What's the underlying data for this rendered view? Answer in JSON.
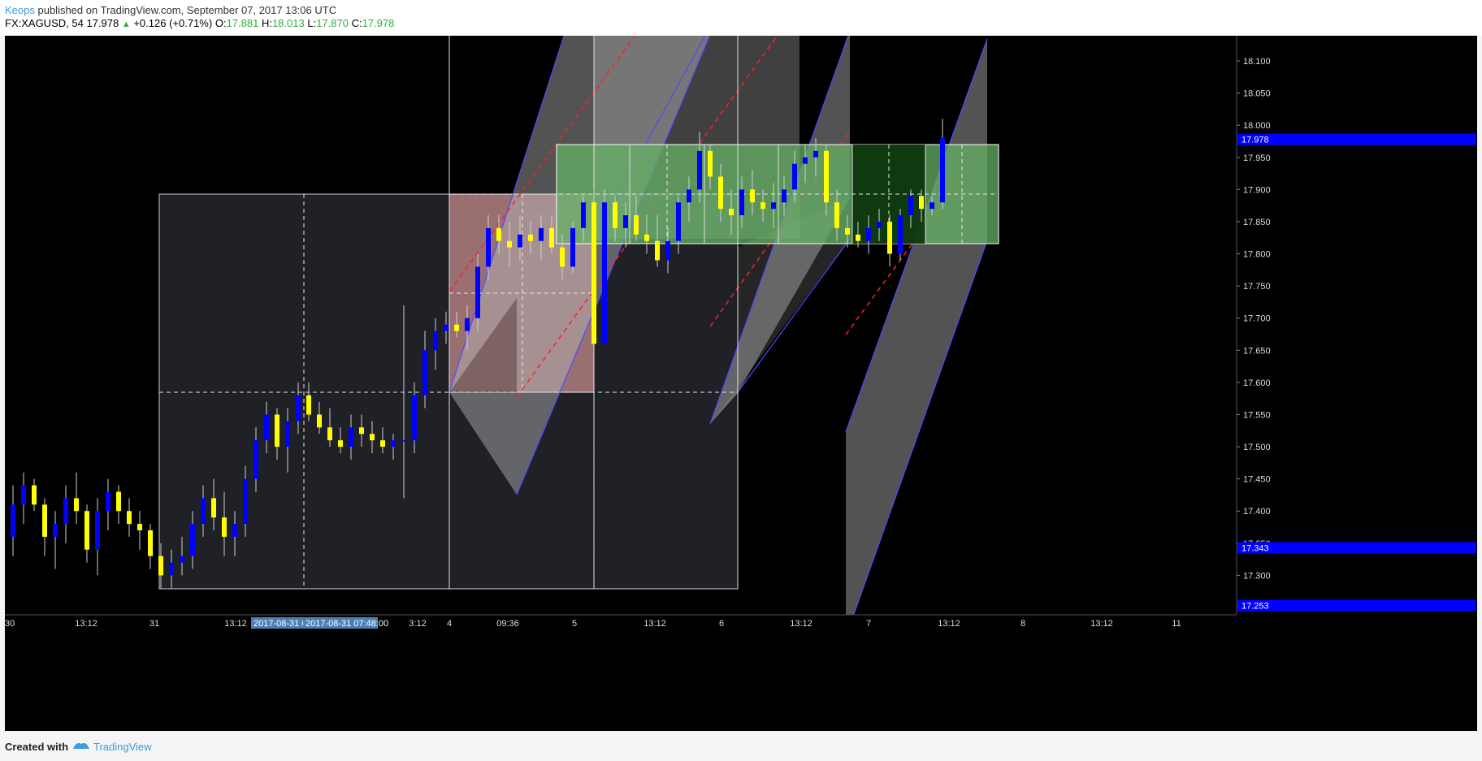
{
  "header": {
    "author": "Keops",
    "published": " published on TradingView.com, September 07, 2017 13:06 UTC",
    "symbol": "FX:XAGUSD, 54",
    "last": "17.978",
    "change": "+0.126 (+0.71%)",
    "o_label": "O:",
    "o": "17.881",
    "h_label": "H:",
    "h": "18.013",
    "l_label": "L:",
    "l": "17.870",
    "c_label": "C:",
    "c": "17.978"
  },
  "footer": {
    "created": "Created with",
    "brand": "TradingView"
  },
  "colors": {
    "up_candle": "#0000ff",
    "down_candle": "#ffff00",
    "price_tag": "#0000ff",
    "box_gray": "#1f2127",
    "box_red": "#ffb0b0",
    "box_green": "#66b266",
    "channel": "#b8b8b8",
    "median_line": "#ff2020"
  },
  "chart_data": {
    "type": "candlestick",
    "symbol": "FX:XAGUSD",
    "timeframe": "54",
    "ylim": [
      17.22,
      18.15
    ],
    "y_ticks": [
      "18.100",
      "18.050",
      "18.000",
      "17.950",
      "17.900",
      "17.850",
      "17.800",
      "17.750",
      "17.700",
      "17.650",
      "17.600",
      "17.550",
      "17.500",
      "17.450",
      "17.400",
      "17.350",
      "17.300",
      "17.250"
    ],
    "x_ticks": [
      "30",
      "13:12",
      "31",
      "13:12",
      "2017-08-31 0",
      "2017-08-31 07:48:00",
      "3:12",
      "4",
      "09:36",
      "5",
      "13:12",
      "6",
      "13:12",
      "7",
      "13:12",
      "8",
      "13:12",
      "11"
    ],
    "price_tags": [
      {
        "label": "17.978",
        "value": 17.978
      },
      {
        "label": "17.343",
        "value": 17.343
      },
      {
        "label": "17.253",
        "value": 17.253
      }
    ],
    "grid": false,
    "candles_approx": [
      [
        17.36,
        17.44,
        17.33,
        17.41
      ],
      [
        17.41,
        17.46,
        17.38,
        17.44
      ],
      [
        17.44,
        17.45,
        17.4,
        17.41
      ],
      [
        17.41,
        17.42,
        17.33,
        17.36
      ],
      [
        17.36,
        17.4,
        17.31,
        17.38
      ],
      [
        17.38,
        17.44,
        17.35,
        17.42
      ],
      [
        17.42,
        17.46,
        17.38,
        17.4
      ],
      [
        17.4,
        17.41,
        17.32,
        17.34
      ],
      [
        17.34,
        17.42,
        17.3,
        17.4
      ],
      [
        17.4,
        17.45,
        17.37,
        17.43
      ],
      [
        17.43,
        17.44,
        17.38,
        17.4
      ],
      [
        17.4,
        17.42,
        17.36,
        17.38
      ],
      [
        17.38,
        17.4,
        17.34,
        17.37
      ],
      [
        17.37,
        17.38,
        17.31,
        17.33
      ],
      [
        17.33,
        17.35,
        17.28,
        17.3
      ],
      [
        17.3,
        17.34,
        17.28,
        17.32
      ],
      [
        17.32,
        17.36,
        17.3,
        17.33
      ],
      [
        17.33,
        17.4,
        17.31,
        17.38
      ],
      [
        17.38,
        17.44,
        17.36,
        17.42
      ],
      [
        17.42,
        17.45,
        17.37,
        17.39
      ],
      [
        17.39,
        17.43,
        17.33,
        17.36
      ],
      [
        17.36,
        17.4,
        17.33,
        17.38
      ],
      [
        17.38,
        17.47,
        17.36,
        17.45
      ],
      [
        17.45,
        17.53,
        17.43,
        17.51
      ],
      [
        17.51,
        17.57,
        17.49,
        17.55
      ],
      [
        17.55,
        17.56,
        17.48,
        17.5
      ],
      [
        17.5,
        17.56,
        17.46,
        17.54
      ],
      [
        17.54,
        17.6,
        17.52,
        17.58
      ],
      [
        17.58,
        17.6,
        17.54,
        17.55
      ],
      [
        17.55,
        17.57,
        17.52,
        17.53
      ],
      [
        17.53,
        17.56,
        17.5,
        17.51
      ],
      [
        17.51,
        17.53,
        17.49,
        17.5
      ],
      [
        17.5,
        17.55,
        17.48,
        17.53
      ],
      [
        17.53,
        17.55,
        17.5,
        17.52
      ],
      [
        17.52,
        17.54,
        17.49,
        17.51
      ],
      [
        17.51,
        17.53,
        17.49,
        17.5
      ],
      [
        17.5,
        17.52,
        17.48,
        17.51
      ],
      [
        17.51,
        17.72,
        17.42,
        17.51
      ],
      [
        17.51,
        17.6,
        17.49,
        17.58
      ],
      [
        17.58,
        17.68,
        17.56,
        17.65
      ],
      [
        17.65,
        17.7,
        17.62,
        17.68
      ],
      [
        17.68,
        17.71,
        17.66,
        17.69
      ],
      [
        17.69,
        17.71,
        17.67,
        17.68
      ],
      [
        17.68,
        17.72,
        17.65,
        17.7
      ],
      [
        17.7,
        17.8,
        17.68,
        17.78
      ],
      [
        17.78,
        17.86,
        17.76,
        17.84
      ],
      [
        17.84,
        17.86,
        17.8,
        17.82
      ],
      [
        17.82,
        17.85,
        17.78,
        17.81
      ],
      [
        17.81,
        17.86,
        17.79,
        17.83
      ],
      [
        17.83,
        17.85,
        17.8,
        17.82
      ],
      [
        17.82,
        17.86,
        17.79,
        17.84
      ],
      [
        17.84,
        17.86,
        17.8,
        17.81
      ],
      [
        17.81,
        17.83,
        17.76,
        17.78
      ],
      [
        17.78,
        17.85,
        17.77,
        17.84
      ],
      [
        17.84,
        17.89,
        17.82,
        17.88
      ],
      [
        17.88,
        17.9,
        17.66,
        17.66
      ],
      [
        17.66,
        17.9,
        17.66,
        17.88
      ],
      [
        17.88,
        17.89,
        17.82,
        17.84
      ],
      [
        17.84,
        17.88,
        17.81,
        17.86
      ],
      [
        17.86,
        17.89,
        17.82,
        17.83
      ],
      [
        17.83,
        17.86,
        17.8,
        17.82
      ],
      [
        17.82,
        17.86,
        17.78,
        17.79
      ],
      [
        17.79,
        17.84,
        17.77,
        17.82
      ],
      [
        17.82,
        17.89,
        17.8,
        17.88
      ],
      [
        17.88,
        17.92,
        17.85,
        17.9
      ],
      [
        17.9,
        17.99,
        17.88,
        17.96
      ],
      [
        17.96,
        17.97,
        17.9,
        17.92
      ],
      [
        17.92,
        17.94,
        17.85,
        17.87
      ],
      [
        17.87,
        17.9,
        17.83,
        17.86
      ],
      [
        17.86,
        17.92,
        17.84,
        17.9
      ],
      [
        17.9,
        17.93,
        17.86,
        17.88
      ],
      [
        17.88,
        17.9,
        17.85,
        17.87
      ],
      [
        17.87,
        17.91,
        17.84,
        17.88
      ],
      [
        17.88,
        17.92,
        17.86,
        17.9
      ],
      [
        17.9,
        17.96,
        17.88,
        17.94
      ],
      [
        17.94,
        17.97,
        17.91,
        17.95
      ],
      [
        17.95,
        17.98,
        17.92,
        17.96
      ],
      [
        17.96,
        17.97,
        17.86,
        17.88
      ],
      [
        17.88,
        17.9,
        17.82,
        17.84
      ],
      [
        17.84,
        17.86,
        17.81,
        17.83
      ],
      [
        17.83,
        17.85,
        17.81,
        17.82
      ],
      [
        17.82,
        17.86,
        17.8,
        17.84
      ],
      [
        17.84,
        17.87,
        17.82,
        17.85
      ],
      [
        17.85,
        17.86,
        17.78,
        17.8
      ],
      [
        17.8,
        17.87,
        17.79,
        17.86
      ],
      [
        17.86,
        17.9,
        17.84,
        17.89
      ],
      [
        17.89,
        17.9,
        17.85,
        17.87
      ],
      [
        17.87,
        17.89,
        17.86,
        17.88
      ],
      [
        17.88,
        18.01,
        17.87,
        17.98
      ]
    ]
  }
}
